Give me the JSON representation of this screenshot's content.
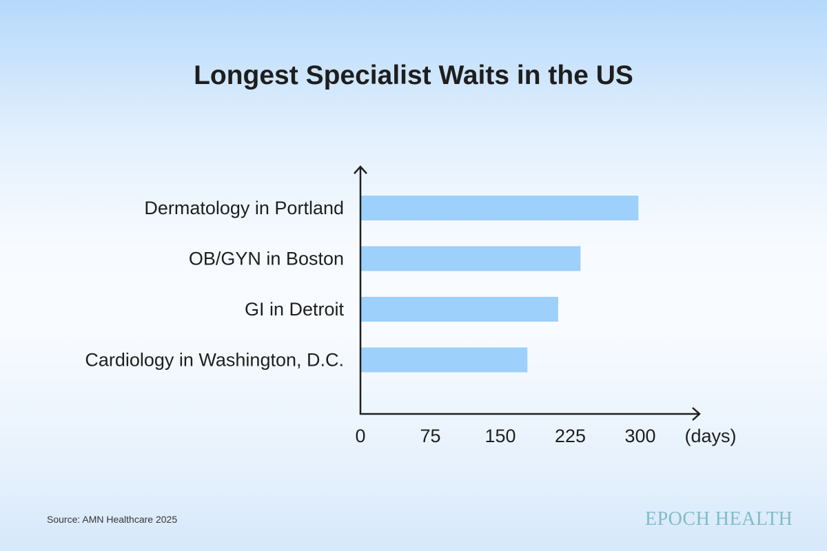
{
  "chart_data": {
    "type": "bar",
    "orientation": "horizontal",
    "title": "Longest Specialist Waits in the US",
    "categories": [
      "Dermatology in Portland",
      "OB/GYN in Boston",
      "GI in Detroit",
      "Cardiology in Washington, D.C."
    ],
    "values": [
      298,
      236,
      212,
      179
    ],
    "xlabel": "(days)",
    "xticks": [
      0,
      75,
      150,
      225,
      300
    ],
    "xlim": [
      0,
      365
    ],
    "bar_color": "#9dd0fb",
    "grid": false
  },
  "source": "Source: AMN Healthcare 2025",
  "logo": "EPOCH HEALTH"
}
